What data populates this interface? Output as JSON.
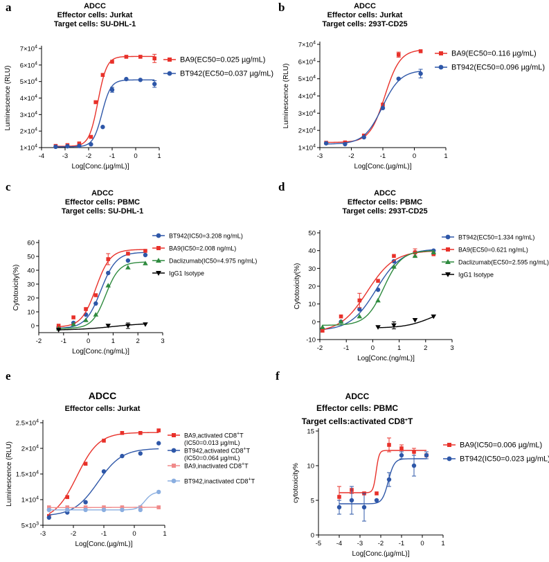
{
  "chart_data": [
    {
      "type": "line",
      "panel": "a",
      "title": [
        "ADCC",
        "Effector cells: Jurkat",
        "Target cells: SU-DHL-1"
      ],
      "xlabel": "Log[Conc.(µg/mL)]",
      "ylabel": "Luminescence (RLU)",
      "xlim": [
        -4,
        1
      ],
      "ylim": [
        10000,
        70000
      ],
      "xticks": [
        -4,
        -3,
        -2,
        -1,
        0,
        1
      ],
      "xtick_labels": [
        "-4",
        "-3",
        "-2",
        "-1",
        "0",
        "1"
      ],
      "yticks": [
        10000,
        20000,
        30000,
        40000,
        50000,
        60000,
        70000
      ],
      "ytick_labels": [
        {
          "m": "1",
          "e": "4"
        },
        {
          "m": "2",
          "e": "4"
        },
        {
          "m": "3",
          "e": "4"
        },
        {
          "m": "4",
          "e": "4"
        },
        {
          "m": "5",
          "e": "4"
        },
        {
          "m": "6",
          "e": "4"
        },
        {
          "m": "7",
          "e": "4"
        }
      ],
      "yfmt": "sci",
      "legend": "right",
      "series": [
        {
          "name": "BA9(EC50=0.025 µg/mL)",
          "color": "#e8312a",
          "marker": "square",
          "x": [
            -3.4,
            -2.9,
            -2.4,
            -1.9,
            -1.7,
            -1.4,
            -1.0,
            -0.4,
            0.2,
            0.8
          ],
          "y": [
            11000,
            11500,
            12500,
            16500,
            37500,
            54000,
            62000,
            65000,
            65000,
            64000
          ],
          "err": [
            0,
            0,
            0,
            0,
            0,
            0,
            0,
            0,
            0,
            2500
          ],
          "fit": {
            "bottom": 10800,
            "top": 65200,
            "logec50": -1.602,
            "hill": 2.3
          }
        },
        {
          "name": "BT942(EC50=0.037 µg/mL)",
          "color": "#2e57a8",
          "marker": "circle",
          "x": [
            -3.4,
            -2.9,
            -2.4,
            -1.9,
            -1.4,
            -1.0,
            -0.4,
            0.2,
            0.8
          ],
          "y": [
            10500,
            10800,
            11000,
            12000,
            22500,
            45000,
            51500,
            51000,
            48500
          ],
          "err": [
            0,
            0,
            0,
            0,
            0,
            1500,
            0,
            0,
            2000
          ],
          "fit": {
            "bottom": 10500,
            "top": 51000,
            "logec50": -1.432,
            "hill": 2.3
          }
        }
      ]
    },
    {
      "type": "line",
      "panel": "b",
      "title": [
        "ADCC",
        "Effector cells: Jurkat",
        "Target cells: 293T-CD25"
      ],
      "xlabel": "Log[Conc.(µg/mL)]",
      "ylabel": "Luminescence (RLU)",
      "xlim": [
        -3,
        1
      ],
      "ylim": [
        10000,
        70000
      ],
      "xticks": [
        -3,
        -2,
        -1,
        0,
        1
      ],
      "xtick_labels": [
        "-3",
        "-2",
        "-1",
        "0",
        "1"
      ],
      "yticks": [
        10000,
        20000,
        30000,
        40000,
        50000,
        60000,
        70000
      ],
      "ytick_labels": [
        {
          "m": "1",
          "e": "4"
        },
        {
          "m": "2",
          "e": "4"
        },
        {
          "m": "3",
          "e": "4"
        },
        {
          "m": "4",
          "e": "4"
        },
        {
          "m": "5",
          "e": "4"
        },
        {
          "m": "6",
          "e": "4"
        },
        {
          "m": "7",
          "e": "4"
        }
      ],
      "yfmt": "sci",
      "legend": "right",
      "series": [
        {
          "name": "BA9(EC50=0.116 µg/mL)",
          "color": "#e8312a",
          "marker": "square",
          "x": [
            -2.8,
            -2.2,
            -1.6,
            -1.0,
            -0.5,
            0.2
          ],
          "y": [
            12800,
            13000,
            17000,
            35000,
            64000,
            66000
          ],
          "err": [
            0,
            0,
            0,
            0,
            1500,
            0
          ],
          "fit": {
            "bottom": 13000,
            "top": 67000,
            "logec50": -0.936,
            "hill": 1.8
          }
        },
        {
          "name": "BT942(EC50=0.096 µg/mL)",
          "color": "#2e57a8",
          "marker": "circle",
          "x": [
            -2.8,
            -2.2,
            -1.6,
            -1.0,
            -0.5,
            0.2
          ],
          "y": [
            12500,
            12000,
            16000,
            33000,
            50000,
            53000
          ],
          "err": [
            0,
            0,
            0,
            0,
            0,
            2500
          ],
          "fit": {
            "bottom": 12000,
            "top": 55000,
            "logec50": -1.018,
            "hill": 1.5
          }
        }
      ]
    },
    {
      "type": "line",
      "panel": "c",
      "title": [
        "ADCC",
        "Effector cells: PBMC",
        "Target cells: SU-DHL-1"
      ],
      "xlabel": "Log[Conc.(ng/mL)]",
      "ylabel": "Cytotoxicity(%)",
      "xlim": [
        -2,
        3
      ],
      "ylim": [
        -5,
        60
      ],
      "xticks": [
        -2,
        -1,
        0,
        1,
        2,
        3
      ],
      "xtick_labels": [
        "-2",
        "-1",
        "0",
        "1",
        "2",
        "3"
      ],
      "yticks": [
        0,
        10,
        20,
        30,
        40,
        50,
        60
      ],
      "ytick_labels": [
        "0",
        "10",
        "20",
        "30",
        "40",
        "50",
        "60"
      ],
      "yfmt": "plain",
      "legend": "right",
      "series": [
        {
          "name": "BT942(IC50=3.208 ng/mL)",
          "color": "#2e57a8",
          "marker": "circle",
          "x": [
            -1.2,
            -0.6,
            -0.1,
            0.3,
            0.8,
            1.6,
            2.3
          ],
          "y": [
            -1,
            2,
            8,
            16,
            38,
            47,
            51
          ],
          "err": [
            0,
            0,
            0,
            0,
            0,
            0,
            0
          ],
          "fit": {
            "bottom": -2,
            "top": 53,
            "logec50": 0.506,
            "hill": 1.4
          }
        },
        {
          "name": "BA9(IC50=2.008 ng/mL)",
          "color": "#e8312a",
          "marker": "square",
          "x": [
            -1.2,
            -0.6,
            -0.1,
            0.3,
            0.8,
            1.6,
            2.3
          ],
          "y": [
            0,
            6,
            12,
            22,
            48,
            52,
            54
          ],
          "err": [
            0,
            0,
            0,
            0,
            4,
            0,
            0
          ],
          "fit": {
            "bottom": -1,
            "top": 55,
            "logec50": 0.303,
            "hill": 1.5
          }
        },
        {
          "name": "Daclizumab(IC50=4.975 ng/mL)",
          "color": "#2e8a3e",
          "marker": "triangle-up",
          "x": [
            -1.2,
            -0.6,
            -0.1,
            0.3,
            0.8,
            1.6,
            2.3
          ],
          "y": [
            -2,
            1,
            4,
            8,
            29,
            42,
            45
          ],
          "err": [
            0,
            0,
            0,
            0,
            0,
            0,
            0
          ],
          "fit": {
            "bottom": -2,
            "top": 46,
            "logec50": 0.697,
            "hill": 1.6
          }
        },
        {
          "name": "IgG1 Isotype",
          "color": "#000000",
          "marker": "triangle-down",
          "x": [
            -1.2,
            0.8,
            1.6,
            2.3
          ],
          "y": [
            -3,
            0,
            0,
            1
          ],
          "err": [
            0,
            0,
            2,
            0
          ],
          "fit": {
            "bottom": -3.2,
            "top": 2,
            "logec50": 1.0,
            "hill": 0.6
          }
        }
      ]
    },
    {
      "type": "line",
      "panel": "d",
      "title": [
        "ADCC",
        "Effector cells: PBMC",
        "Target cells: 293T-CD25"
      ],
      "xlabel": "Log[Conc.(ng/mL)]",
      "ylabel": "Cytotoxicity(%)",
      "xlim": [
        -2,
        3
      ],
      "ylim": [
        -10,
        50
      ],
      "xticks": [
        -2,
        -1,
        0,
        1,
        2,
        3
      ],
      "xtick_labels": [
        "-2",
        "-1",
        "0",
        "1",
        "2",
        "3"
      ],
      "yticks": [
        -10,
        0,
        10,
        20,
        30,
        40,
        50
      ],
      "ytick_labels": [
        "-10",
        "0",
        "10",
        "20",
        "30",
        "40",
        "50"
      ],
      "yfmt": "plain",
      "legend": "right",
      "series": [
        {
          "name": "BT942(EC50=1.334 ng/mL)",
          "color": "#2e57a8",
          "marker": "circle",
          "x": [
            -1.9,
            -1.2,
            -0.5,
            0.2,
            0.8,
            1.6,
            2.3
          ],
          "y": [
            -4,
            0,
            7,
            18,
            34,
            39,
            40
          ],
          "err": [
            0,
            0,
            0,
            0,
            0,
            0,
            0
          ],
          "fit": {
            "bottom": -5,
            "top": 41,
            "logec50": 0.125,
            "hill": 0.9
          }
        },
        {
          "name": "BA9(EC50=0.621 ng/mL)",
          "color": "#e8312a",
          "marker": "square",
          "x": [
            -1.9,
            -1.2,
            -0.5,
            0.2,
            0.8,
            1.6,
            2.3
          ],
          "y": [
            -5,
            3,
            12,
            23,
            37,
            39,
            38
          ],
          "err": [
            0,
            0,
            4,
            0,
            0,
            2,
            0
          ],
          "fit": {
            "bottom": -6,
            "top": 40,
            "logec50": -0.207,
            "hill": 0.85
          }
        },
        {
          "name": "Daclizumab(EC50=2.595 ng/mL)",
          "color": "#2e8a3e",
          "marker": "triangle-up",
          "x": [
            -1.9,
            -1.2,
            -0.5,
            0.2,
            0.8,
            1.6,
            2.3
          ],
          "y": [
            -3,
            0,
            3,
            12,
            31,
            37,
            39
          ],
          "err": [
            0,
            0,
            0,
            0,
            0,
            0,
            0
          ],
          "fit": {
            "bottom": -2,
            "top": 40,
            "logec50": 0.414,
            "hill": 1.3
          }
        },
        {
          "name": "IgG1 Isotype",
          "color": "#000000",
          "marker": "triangle-down",
          "x": [
            0.2,
            0.8,
            1.6,
            2.3
          ],
          "y": [
            -3,
            -2,
            1,
            3
          ],
          "err": [
            0,
            2,
            0,
            0
          ],
          "fit": {
            "bottom": -3.5,
            "top": 8,
            "logec50": 2.2,
            "hill": 0.9
          }
        }
      ]
    },
    {
      "type": "line",
      "panel": "e",
      "title": [
        "ADCC",
        "Effector cells: Jurkat"
      ],
      "xlabel": "Log[Conc.(µg/mL)]",
      "ylabel": "Luminescence (RLU)",
      "xlim": [
        -3,
        1
      ],
      "ylim": [
        5000,
        25000
      ],
      "xticks": [
        -3,
        -2,
        -1,
        0,
        1
      ],
      "xtick_labels": [
        "-3",
        "-2",
        "-1",
        "0",
        "1"
      ],
      "yticks": [
        5000,
        10000,
        15000,
        20000,
        25000
      ],
      "ytick_labels": [
        {
          "m": "5",
          "e": "3"
        },
        {
          "m": "1",
          "e": "4"
        },
        {
          "m": "1.5",
          "e": "4"
        },
        {
          "m": "2",
          "e": "4"
        },
        {
          "m": "2.5",
          "e": "4"
        }
      ],
      "yfmt": "sci",
      "legend": "right",
      "series": [
        {
          "name": "BA9,activated CD8",
          "sup": "+",
          "suffix": "T",
          "line2": "(IC50=0.013 µg/mL)",
          "color": "#e8312a",
          "marker": "square",
          "x": [
            -2.8,
            -2.2,
            -1.6,
            -1.0,
            -0.4,
            0.2,
            0.8
          ],
          "y": [
            6800,
            10500,
            17000,
            21500,
            23000,
            23000,
            23500
          ],
          "err": [
            0,
            0,
            0,
            0,
            0,
            0,
            0
          ],
          "fit": {
            "bottom": 6000,
            "top": 23100,
            "logec50": -1.886,
            "hill": 1.2
          }
        },
        {
          "name": "BT942,activated CD8",
          "sup": "+",
          "suffix": "T",
          "line2": "(IC50=0.064 µg/mL)",
          "color": "#2e57a8",
          "marker": "circle",
          "x": [
            -2.8,
            -2.2,
            -1.6,
            -1.0,
            -0.4,
            0.2,
            0.8
          ],
          "y": [
            6500,
            7500,
            9500,
            15500,
            18500,
            19000,
            21000
          ],
          "err": [
            0,
            0,
            0,
            0,
            0,
            0,
            0
          ],
          "fit": {
            "bottom": 6800,
            "top": 20000,
            "logec50": -1.194,
            "hill": 1.1
          }
        },
        {
          "name": "BA9,inactivated CD8",
          "sup": "+",
          "suffix": "T",
          "color": "#f08a8a",
          "marker": "square",
          "x": [
            -2.8,
            -2.2,
            -1.6,
            -1.0,
            -0.4,
            0.2,
            0.8
          ],
          "y": [
            8500,
            8500,
            8500,
            8500,
            8500,
            8500,
            8500
          ],
          "err": [
            0,
            0,
            0,
            0,
            0,
            0,
            0
          ],
          "fit": {
            "bottom": 8450,
            "top": 8500,
            "logec50": -1.0,
            "hill": 1.0
          }
        },
        {
          "name": "BT942,inactivated CD8",
          "sup": "+",
          "suffix": "T",
          "color": "#8aaee0",
          "marker": "circle",
          "x": [
            -2.8,
            -2.2,
            -1.6,
            -1.0,
            -0.4,
            0.2,
            0.8
          ],
          "y": [
            8000,
            8000,
            8000,
            8000,
            8000,
            8000,
            11500
          ],
          "err": [
            0,
            0,
            0,
            0,
            0,
            0,
            0
          ],
          "fit": {
            "bottom": 8000,
            "top": 11500,
            "logec50": 0.35,
            "hill": 3.5
          }
        }
      ]
    },
    {
      "type": "line",
      "panel": "f",
      "title": [
        "ADCC",
        "Effector cells:  PBMC",
        "Target cells:activated CD8",
        "+",
        "T"
      ],
      "xlabel": "Log[Conc.(µg/mL)]",
      "ylabel": "cytotoxicity%",
      "xlim": [
        -5,
        1
      ],
      "ylim": [
        0,
        15
      ],
      "xticks": [
        -5,
        -4,
        -3,
        -2,
        -1,
        0,
        1
      ],
      "xtick_labels": [
        "-5",
        "-4",
        "-3",
        "-2",
        "-1",
        "0",
        "1"
      ],
      "yticks": [
        0,
        5,
        10,
        15
      ],
      "ytick_labels": [
        "0",
        "5",
        "10",
        "15"
      ],
      "yfmt": "plain",
      "legend": "right",
      "series": [
        {
          "name": "BA9(IC50=0.006 µg/mL)",
          "color": "#e8312a",
          "marker": "square",
          "x": [
            -4.0,
            -3.4,
            -2.8,
            -2.2,
            -1.6,
            -1.0,
            -0.4,
            0.2
          ],
          "y": [
            5.5,
            6.5,
            6.0,
            6.0,
            13.0,
            12.5,
            12.0,
            11.5
          ],
          "err": [
            1.5,
            0.5,
            0,
            0,
            1.0,
            0.5,
            0.5,
            0.5
          ],
          "fit": {
            "bottom": 6.1,
            "top": 12.2,
            "logec50": -2.222,
            "hill": 6.0
          }
        },
        {
          "name": "BT942(IC50=0.023 µg/mL)",
          "color": "#2e57a8",
          "marker": "circle",
          "x": [
            -4.0,
            -3.4,
            -2.8,
            -2.2,
            -1.6,
            -1.0,
            -0.4,
            0.2
          ],
          "y": [
            4.0,
            5.0,
            4.0,
            5.0,
            8.0,
            11.5,
            10.0,
            11.5
          ],
          "err": [
            1.0,
            2.0,
            2.0,
            0,
            1.0,
            0.5,
            1.5,
            0.5
          ],
          "fit": {
            "bottom": 4.5,
            "top": 11.0,
            "logec50": -1.638,
            "hill": 3.0
          }
        }
      ]
    }
  ]
}
